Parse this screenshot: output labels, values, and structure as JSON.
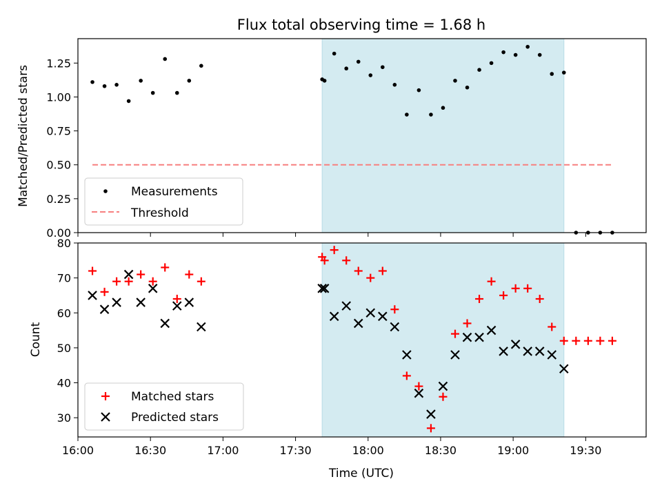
{
  "chart_data": [
    {
      "type": "scatter",
      "title": "Flux total observing time = 1.68 h",
      "xlabel": "",
      "ylabel": "Matched/Predicted stars",
      "x_unit": "time (UTC)",
      "xlim": [
        "16:00",
        "19:55"
      ],
      "ylim": [
        0,
        1.43
      ],
      "yticks": [
        0.0,
        0.25,
        0.5,
        0.75,
        1.0,
        1.25
      ],
      "ytick_labels": [
        "0.00",
        "0.25",
        "0.50",
        "0.75",
        "1.00",
        "1.25"
      ],
      "grid": false,
      "legend_position": "lower-left",
      "shaded_region": {
        "x_start": "17:41",
        "x_end": "19:21",
        "color": "#d4ebf1"
      },
      "series": [
        {
          "name": "Measurements",
          "style": "dot",
          "color": "#000000",
          "points": [
            [
              "16:06",
              1.11
            ],
            [
              "16:11",
              1.08
            ],
            [
              "16:16",
              1.09
            ],
            [
              "16:21",
              0.97
            ],
            [
              "16:26",
              1.12
            ],
            [
              "16:31",
              1.03
            ],
            [
              "16:36",
              1.28
            ],
            [
              "16:41",
              1.03
            ],
            [
              "16:46",
              1.12
            ],
            [
              "16:51",
              1.23
            ],
            [
              "17:41",
              1.13
            ],
            [
              "17:42",
              1.12
            ],
            [
              "17:46",
              1.32
            ],
            [
              "17:51",
              1.21
            ],
            [
              "17:56",
              1.26
            ],
            [
              "18:01",
              1.16
            ],
            [
              "18:06",
              1.22
            ],
            [
              "18:11",
              1.09
            ],
            [
              "18:16",
              0.87
            ],
            [
              "18:21",
              1.05
            ],
            [
              "18:26",
              0.87
            ],
            [
              "18:31",
              0.92
            ],
            [
              "18:36",
              1.12
            ],
            [
              "18:41",
              1.07
            ],
            [
              "18:46",
              1.2
            ],
            [
              "18:51",
              1.25
            ],
            [
              "18:56",
              1.33
            ],
            [
              "19:01",
              1.31
            ],
            [
              "19:06",
              1.37
            ],
            [
              "19:11",
              1.31
            ],
            [
              "19:16",
              1.17
            ],
            [
              "19:21",
              1.18
            ],
            [
              "19:26",
              0.0
            ],
            [
              "19:31",
              0.0
            ],
            [
              "19:36",
              0.0
            ],
            [
              "19:41",
              0.0
            ]
          ]
        },
        {
          "name": "Threshold",
          "style": "dashed-line",
          "color": "#f77f7f",
          "points": [
            [
              "16:06",
              0.5
            ],
            [
              "19:41",
              0.5
            ]
          ]
        }
      ]
    },
    {
      "type": "scatter",
      "title": "",
      "xlabel": "Time (UTC)",
      "ylabel": "Count",
      "x_unit": "time (UTC)",
      "xlim": [
        "16:00",
        "19:55"
      ],
      "ylim": [
        24.5,
        80
      ],
      "xticks": [
        "16:00",
        "16:30",
        "17:00",
        "17:30",
        "18:00",
        "18:30",
        "19:00",
        "19:30"
      ],
      "yticks": [
        30,
        40,
        50,
        60,
        70,
        80
      ],
      "grid": false,
      "legend_position": "lower-left",
      "shaded_region": {
        "x_start": "17:41",
        "x_end": "19:21",
        "color": "#d4ebf1"
      },
      "series": [
        {
          "name": "Matched stars",
          "style": "plus",
          "color": "#ff0000",
          "points": [
            [
              "16:06",
              72
            ],
            [
              "16:11",
              66
            ],
            [
              "16:16",
              69
            ],
            [
              "16:21",
              69
            ],
            [
              "16:26",
              71
            ],
            [
              "16:31",
              69
            ],
            [
              "16:36",
              73
            ],
            [
              "16:41",
              64
            ],
            [
              "16:46",
              71
            ],
            [
              "16:51",
              69
            ],
            [
              "17:41",
              76
            ],
            [
              "17:42",
              75
            ],
            [
              "17:46",
              78
            ],
            [
              "17:51",
              75
            ],
            [
              "17:56",
              72
            ],
            [
              "18:01",
              70
            ],
            [
              "18:06",
              72
            ],
            [
              "18:11",
              61
            ],
            [
              "18:16",
              42
            ],
            [
              "18:21",
              39
            ],
            [
              "18:26",
              27
            ],
            [
              "18:31",
              36
            ],
            [
              "18:36",
              54
            ],
            [
              "18:41",
              57
            ],
            [
              "18:46",
              64
            ],
            [
              "18:51",
              69
            ],
            [
              "18:56",
              65
            ],
            [
              "19:01",
              67
            ],
            [
              "19:06",
              67
            ],
            [
              "19:11",
              64
            ],
            [
              "19:16",
              56
            ],
            [
              "19:21",
              52
            ],
            [
              "19:26",
              52
            ],
            [
              "19:31",
              52
            ],
            [
              "19:36",
              52
            ],
            [
              "19:41",
              52
            ]
          ]
        },
        {
          "name": "Predicted stars",
          "style": "x",
          "color": "#000000",
          "points": [
            [
              "16:06",
              65
            ],
            [
              "16:11",
              61
            ],
            [
              "16:16",
              63
            ],
            [
              "16:21",
              71
            ],
            [
              "16:26",
              63
            ],
            [
              "16:31",
              67
            ],
            [
              "16:36",
              57
            ],
            [
              "16:41",
              62
            ],
            [
              "16:46",
              63
            ],
            [
              "16:51",
              56
            ],
            [
              "17:41",
              67
            ],
            [
              "17:42",
              67
            ],
            [
              "17:46",
              59
            ],
            [
              "17:51",
              62
            ],
            [
              "17:56",
              57
            ],
            [
              "18:01",
              60
            ],
            [
              "18:06",
              59
            ],
            [
              "18:11",
              56
            ],
            [
              "18:16",
              48
            ],
            [
              "18:21",
              37
            ],
            [
              "18:26",
              31
            ],
            [
              "18:31",
              39
            ],
            [
              "18:36",
              48
            ],
            [
              "18:41",
              53
            ],
            [
              "18:46",
              53
            ],
            [
              "18:51",
              55
            ],
            [
              "18:56",
              49
            ],
            [
              "19:01",
              51
            ],
            [
              "19:06",
              49
            ],
            [
              "19:11",
              49
            ],
            [
              "19:16",
              48
            ],
            [
              "19:21",
              44
            ]
          ]
        }
      ]
    }
  ]
}
